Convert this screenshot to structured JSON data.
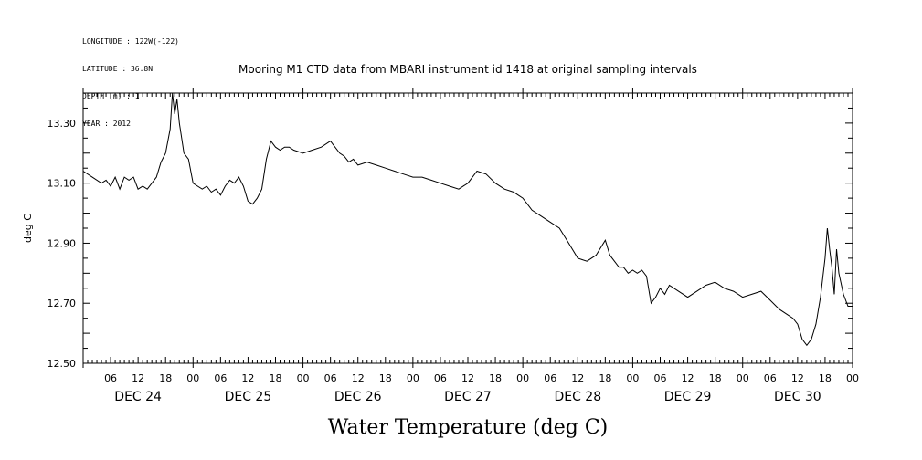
{
  "header": {
    "longitude": "LONGITUDE : 122W(-122)",
    "latitude": "LATITUDE : 36.8N",
    "depth": "DEPTH (m) : 1",
    "year": "YEAR : 2012"
  },
  "chart_data": {
    "type": "line",
    "title": "Mooring M1 CTD data from MBARI instrument id 1418 at original sampling intervals",
    "xlabel": "Water Temperature (deg C)",
    "ylabel": "deg C",
    "ylim": [
      12.5,
      13.4
    ],
    "y_ticks": [
      "13.30",
      "13.10",
      "12.90",
      "12.70",
      "12.50"
    ],
    "y_tick_values": [
      13.3,
      13.1,
      12.9,
      12.7,
      12.5
    ],
    "xlim_hours": [
      0,
      168
    ],
    "x_tick_labels": [
      "06",
      "12",
      "18",
      "00",
      "06",
      "12",
      "18",
      "00",
      "06",
      "12",
      "18",
      "00",
      "06",
      "12",
      "18",
      "00",
      "06",
      "12",
      "18",
      "00",
      "06",
      "12",
      "18",
      "00",
      "06",
      "12",
      "18",
      "00"
    ],
    "x_tick_hours": [
      6,
      12,
      18,
      24,
      30,
      36,
      42,
      48,
      54,
      60,
      66,
      72,
      78,
      84,
      90,
      96,
      102,
      108,
      114,
      120,
      126,
      132,
      138,
      144,
      150,
      156,
      162,
      168
    ],
    "day_labels": [
      "DEC 24",
      "DEC 25",
      "DEC 26",
      "DEC 27",
      "DEC 28",
      "DEC 29",
      "DEC 30"
    ],
    "day_label_hours": [
      12,
      36,
      60,
      84,
      108,
      132,
      156
    ],
    "grid": false,
    "series": [
      {
        "x": [
          0,
          2,
          4,
          5,
          6,
          7,
          8,
          9,
          10,
          11,
          12,
          13,
          14,
          15,
          16,
          17,
          18,
          19,
          19.5,
          20,
          20.5,
          21,
          21.5,
          22,
          23,
          24,
          25,
          26,
          27,
          28,
          29,
          30,
          31,
          32,
          33,
          34,
          35,
          36,
          37,
          38,
          39,
          40,
          41,
          42,
          43,
          44,
          45,
          46,
          48,
          50,
          52,
          54,
          56,
          57,
          58,
          59,
          60,
          62,
          64,
          66,
          68,
          70,
          72,
          74,
          76,
          78,
          80,
          82,
          84,
          86,
          88,
          90,
          92,
          94,
          95,
          96,
          97,
          98,
          100,
          102,
          104,
          106,
          108,
          110,
          112,
          114,
          115,
          116,
          117,
          118,
          119,
          120,
          121,
          122,
          123,
          124,
          125,
          126,
          127,
          128,
          130,
          132,
          134,
          136,
          138,
          140,
          142,
          144,
          146,
          148,
          150,
          152,
          154,
          155,
          156,
          157,
          158,
          159,
          160,
          161,
          162,
          162.5,
          163,
          163.5,
          164,
          164.5,
          165,
          166,
          167,
          168
        ],
        "y": [
          13.14,
          13.12,
          13.1,
          13.11,
          13.09,
          13.12,
          13.08,
          13.12,
          13.11,
          13.12,
          13.08,
          13.09,
          13.08,
          13.1,
          13.12,
          13.17,
          13.2,
          13.28,
          13.4,
          13.33,
          13.38,
          13.3,
          13.25,
          13.2,
          13.18,
          13.1,
          13.09,
          13.08,
          13.09,
          13.07,
          13.08,
          13.06,
          13.09,
          13.11,
          13.1,
          13.12,
          13.09,
          13.04,
          13.03,
          13.05,
          13.08,
          13.18,
          13.24,
          13.22,
          13.21,
          13.22,
          13.22,
          13.21,
          13.2,
          13.21,
          13.22,
          13.24,
          13.2,
          13.19,
          13.17,
          13.18,
          13.16,
          13.17,
          13.16,
          13.15,
          13.14,
          13.13,
          13.12,
          13.12,
          13.11,
          13.1,
          13.09,
          13.08,
          13.1,
          13.14,
          13.13,
          13.1,
          13.08,
          13.07,
          13.06,
          13.05,
          13.03,
          13.01,
          12.99,
          12.97,
          12.95,
          12.9,
          12.85,
          12.84,
          12.86,
          12.91,
          12.86,
          12.84,
          12.82,
          12.82,
          12.8,
          12.81,
          12.8,
          12.81,
          12.79,
          12.7,
          12.72,
          12.75,
          12.73,
          12.76,
          12.74,
          12.72,
          12.74,
          12.76,
          12.77,
          12.75,
          12.74,
          12.72,
          12.73,
          12.74,
          12.71,
          12.68,
          12.66,
          12.65,
          12.63,
          12.58,
          12.56,
          12.58,
          12.63,
          12.72,
          12.85,
          12.95,
          12.88,
          12.82,
          12.73,
          12.88,
          12.8,
          12.73,
          12.69,
          12.69
        ]
      }
    ]
  }
}
